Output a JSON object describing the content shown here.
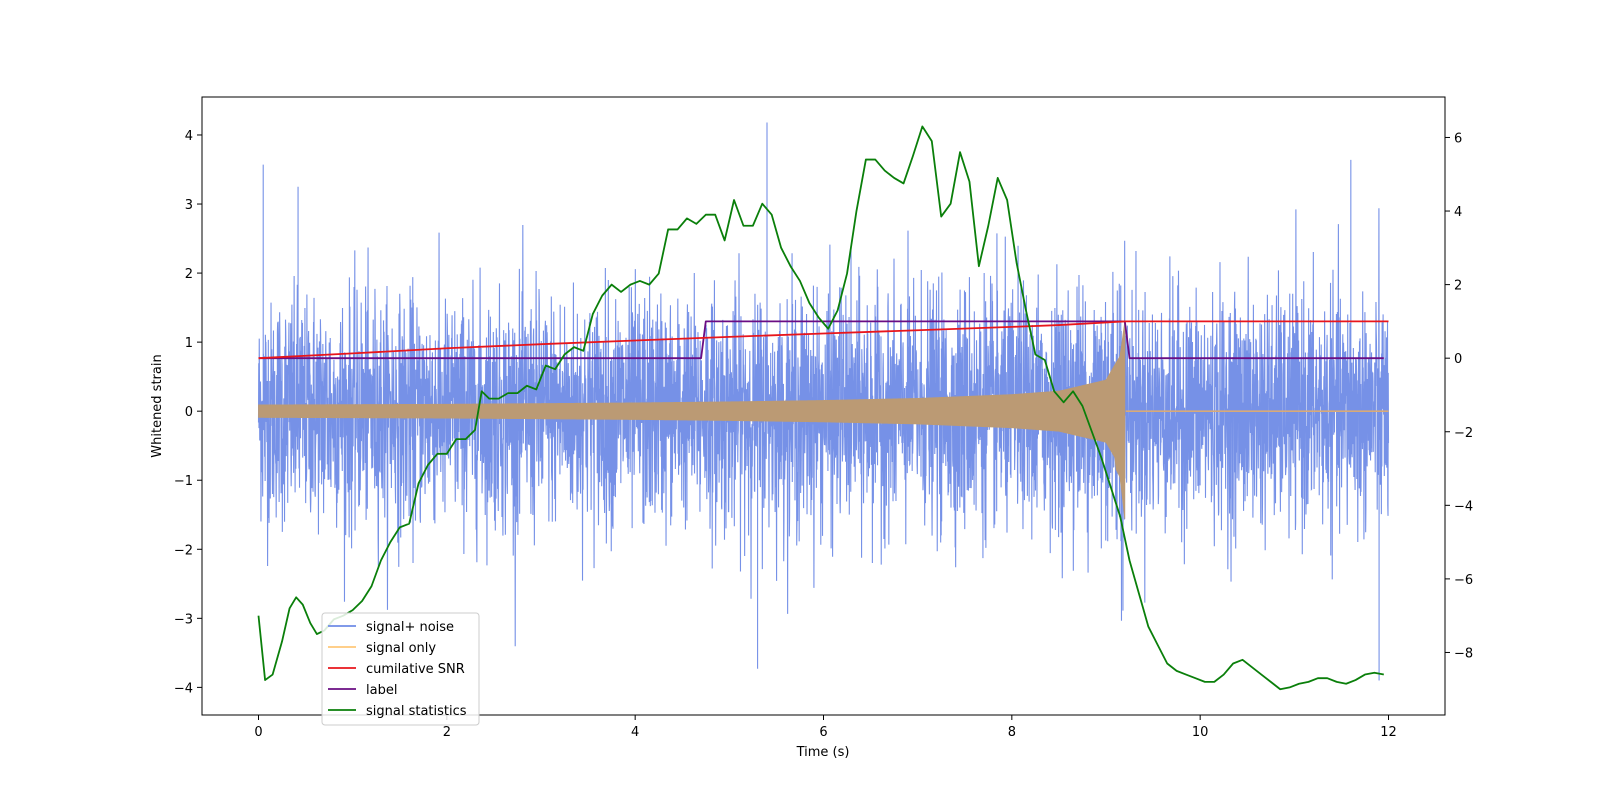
{
  "chart_data": {
    "type": "line",
    "title": "",
    "xlabel": "Time (s)",
    "ylabel": "Whitened strain",
    "y2label": "",
    "xlim": [
      -0.6,
      12.6
    ],
    "ylim": [
      -4.4,
      4.55
    ],
    "y2lim": [
      -9.7,
      7.1
    ],
    "xticks": [
      0,
      2,
      4,
      6,
      8,
      10,
      12
    ],
    "yticks": [
      -4,
      -3,
      -2,
      -1,
      0,
      1,
      2,
      3,
      4
    ],
    "y2ticks": [
      -8,
      -6,
      -4,
      -2,
      0,
      2,
      4,
      6
    ],
    "xtick_labels": [
      "0",
      "2",
      "4",
      "6",
      "8",
      "10",
      "12"
    ],
    "ytick_labels": [
      "−4",
      "−3",
      "−2",
      "−1",
      "0",
      "1",
      "2",
      "3",
      "4"
    ],
    "y2tick_labels": [
      "−8",
      "−6",
      "−4",
      "−2",
      "0",
      "2",
      "4",
      "6"
    ],
    "grid": false,
    "legend_position": "lower-left",
    "series": [
      {
        "name": "signal+ noise",
        "axis": "left",
        "color": "#6f8be6",
        "style": "dense-noise",
        "description_values": {
          "x_range": [
            0,
            12
          ],
          "noise_sigma": 1.0,
          "merger_time": 9.2,
          "merger_peak": [
            1.3,
            -1.6
          ],
          "notable_spikes": [
            [
              0.05,
              3.57
            ],
            [
              0.42,
              3.25
            ],
            [
              5.4,
              4.18
            ],
            [
              5.3,
              -3.73
            ],
            [
              11.9,
              -3.9
            ],
            [
              11.6,
              3.64
            ]
          ]
        }
      },
      {
        "name": "signal only",
        "axis": "left",
        "color": "#ffb347",
        "style": "chirp",
        "x": [
          0,
          1,
          2,
          3,
          4,
          5,
          6,
          7,
          8,
          8.5,
          9.0,
          9.15,
          9.2,
          9.21,
          12
        ],
        "values": [
          0.09,
          0.095,
          0.1,
          0.11,
          0.12,
          0.135,
          0.155,
          0.185,
          0.24,
          0.29,
          0.45,
          0.8,
          1.3,
          0.0,
          0.0
        ]
      },
      {
        "name": "cumilative SNR",
        "axis": "right",
        "color": "#e8161c",
        "x": [
          0,
          1,
          2,
          3,
          4,
          5,
          6,
          7,
          8,
          8.5,
          9,
          9.2,
          9.21,
          12
        ],
        "values": [
          0.0,
          0.13,
          0.27,
          0.38,
          0.48,
          0.58,
          0.67,
          0.76,
          0.85,
          0.9,
          0.97,
          1.0,
          1.0,
          1.0
        ]
      },
      {
        "name": "label",
        "axis": "right",
        "color": "#6a0d83",
        "x": [
          0,
          4.7,
          4.75,
          9.2,
          9.25,
          11.95
        ],
        "values": [
          0,
          0,
          1,
          1,
          0,
          0
        ]
      },
      {
        "name": "signal statistics",
        "axis": "right",
        "color": "#0a7f0a",
        "x": [
          0,
          0.07,
          0.15,
          0.25,
          0.33,
          0.4,
          0.47,
          0.55,
          0.62,
          0.7,
          0.8,
          0.9,
          1.0,
          1.1,
          1.2,
          1.3,
          1.4,
          1.5,
          1.6,
          1.7,
          1.8,
          1.9,
          2.0,
          2.1,
          2.2,
          2.3,
          2.37,
          2.45,
          2.55,
          2.65,
          2.75,
          2.85,
          2.95,
          3.05,
          3.15,
          3.25,
          3.35,
          3.45,
          3.55,
          3.65,
          3.75,
          3.85,
          3.95,
          4.05,
          4.15,
          4.25,
          4.35,
          4.45,
          4.55,
          4.65,
          4.75,
          4.85,
          4.95,
          5.05,
          5.15,
          5.25,
          5.35,
          5.45,
          5.55,
          5.65,
          5.75,
          5.85,
          5.95,
          6.05,
          6.15,
          6.25,
          6.35,
          6.45,
          6.55,
          6.65,
          6.75,
          6.85,
          6.95,
          7.05,
          7.15,
          7.25,
          7.35,
          7.45,
          7.55,
          7.65,
          7.75,
          7.85,
          7.95,
          8.05,
          8.15,
          8.25,
          8.35,
          8.45,
          8.55,
          8.65,
          8.75,
          8.85,
          8.95,
          9.05,
          9.15,
          9.25,
          9.35,
          9.45,
          9.55,
          9.65,
          9.75,
          9.85,
          9.95,
          10.05,
          10.15,
          10.25,
          10.35,
          10.45,
          10.55,
          10.65,
          10.75,
          10.85,
          10.95,
          11.05,
          11.15,
          11.25,
          11.35,
          11.45,
          11.55,
          11.65,
          11.75,
          11.85,
          11.95
        ],
        "values": [
          -7.0,
          -8.75,
          -8.6,
          -7.7,
          -6.8,
          -6.5,
          -6.7,
          -7.2,
          -7.5,
          -7.4,
          -7.1,
          -7.0,
          -6.85,
          -6.6,
          -6.2,
          -5.5,
          -5.0,
          -4.6,
          -4.5,
          -3.4,
          -2.9,
          -2.6,
          -2.6,
          -2.2,
          -2.2,
          -1.95,
          -0.9,
          -1.1,
          -1.1,
          -0.95,
          -0.95,
          -0.75,
          -0.85,
          -0.2,
          -0.3,
          0.1,
          0.3,
          0.2,
          1.2,
          1.7,
          2.0,
          1.8,
          2.0,
          2.1,
          2.0,
          2.3,
          3.5,
          3.5,
          3.8,
          3.65,
          3.9,
          3.9,
          3.2,
          4.3,
          3.6,
          3.6,
          4.2,
          3.9,
          3.0,
          2.5,
          2.1,
          1.5,
          1.1,
          0.8,
          1.3,
          2.3,
          4.0,
          5.4,
          5.4,
          5.1,
          4.9,
          4.75,
          5.5,
          6.3,
          5.9,
          3.85,
          4.2,
          5.6,
          4.8,
          2.5,
          3.6,
          4.9,
          4.3,
          2.6,
          1.3,
          0.1,
          -0.05,
          -0.9,
          -1.2,
          -0.9,
          -1.3,
          -2.0,
          -2.7,
          -3.5,
          -4.3,
          -5.5,
          -6.4,
          -7.3,
          -7.8,
          -8.3,
          -8.5,
          -8.6,
          -8.7,
          -8.8,
          -8.8,
          -8.6,
          -8.3,
          -8.2,
          -8.4,
          -8.6,
          -8.8,
          -9.0,
          -8.95,
          -8.85,
          -8.8,
          -8.7,
          -8.7,
          -8.8,
          -8.85,
          -8.75,
          -8.6,
          -8.55,
          -8.6
        ]
      }
    ]
  }
}
